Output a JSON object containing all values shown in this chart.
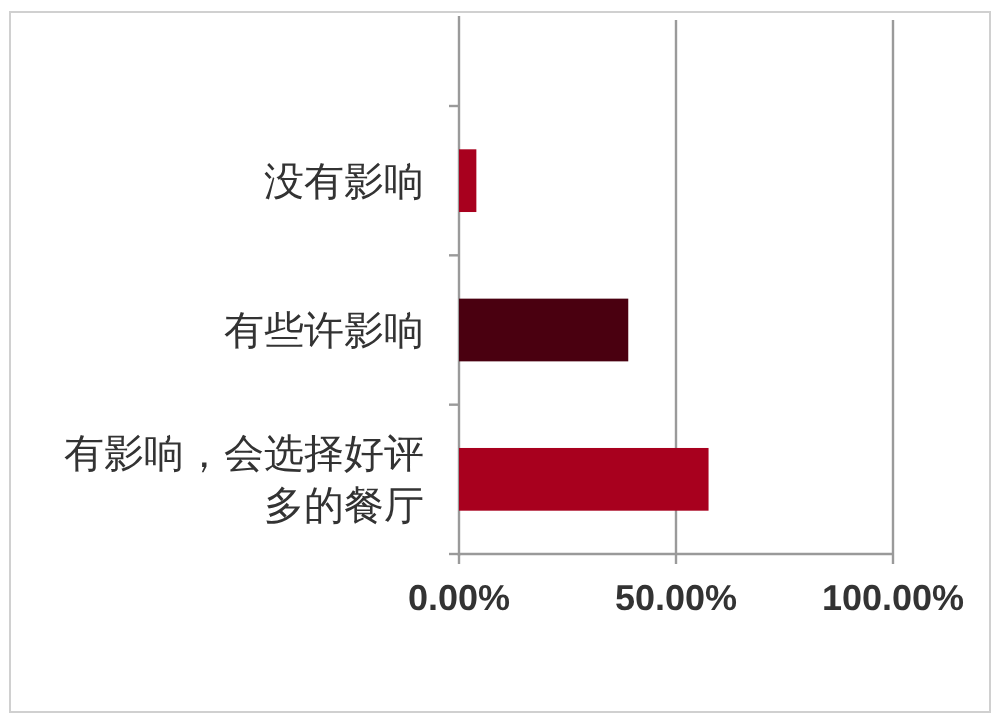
{
  "chart_data": {
    "type": "bar",
    "orientation": "horizontal",
    "categories": [
      "没有影响",
      "有些许影响",
      "有影响，会选择好评多的餐厅"
    ],
    "values": [
      4,
      39,
      57.5
    ],
    "colors": [
      "#a8001e",
      "#4a0010",
      "#a8001e"
    ],
    "xlim": [
      0,
      100
    ],
    "xticks": [
      {
        "value": 0,
        "label": "0.00%"
      },
      {
        "value": 50,
        "label": "50.00%"
      },
      {
        "value": 100,
        "label": "100.00%"
      }
    ],
    "grid": "x"
  }
}
